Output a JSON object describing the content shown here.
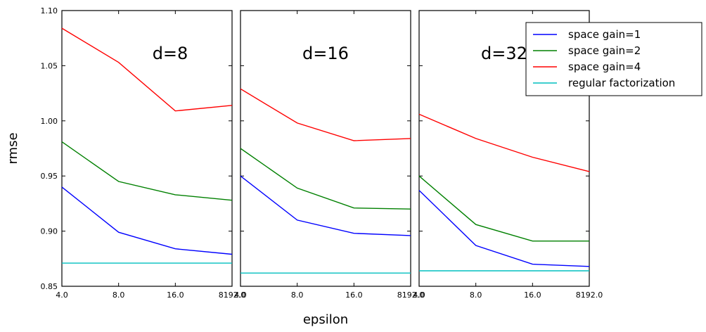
{
  "chart_data": {
    "type": "line",
    "ylabel": "rmse",
    "xlabel": "epsilon",
    "ylim": [
      0.85,
      1.1
    ],
    "yticks": [
      "0.85",
      "0.90",
      "0.95",
      "1.00",
      "1.05",
      "1.10"
    ],
    "x_categories": [
      "4.0",
      "8.0",
      "16.0",
      "8192.0"
    ],
    "legend": {
      "placement": "top-right"
    },
    "series_styles": [
      {
        "name": "space gain=1",
        "color": "#0000ff"
      },
      {
        "name": "space gain=2",
        "color": "#008000"
      },
      {
        "name": "space gain=4",
        "color": "#ff0000"
      },
      {
        "name": "regular factorization",
        "color": "#00bfbf"
      }
    ],
    "panels": [
      {
        "title": "d=8",
        "series": [
          {
            "name": "space gain=1",
            "values": [
              0.94,
              0.899,
              0.884,
              0.879
            ]
          },
          {
            "name": "space gain=2",
            "values": [
              0.981,
              0.945,
              0.933,
              0.928
            ]
          },
          {
            "name": "space gain=4",
            "values": [
              1.084,
              1.053,
              1.009,
              1.014
            ]
          },
          {
            "name": "regular factorization",
            "values": [
              0.871,
              0.871,
              0.871,
              0.871
            ]
          }
        ]
      },
      {
        "title": "d=16",
        "series": [
          {
            "name": "space gain=1",
            "values": [
              0.95,
              0.91,
              0.898,
              0.896
            ]
          },
          {
            "name": "space gain=2",
            "values": [
              0.975,
              0.939,
              0.921,
              0.92
            ]
          },
          {
            "name": "space gain=4",
            "values": [
              1.029,
              0.998,
              0.982,
              0.984
            ]
          },
          {
            "name": "regular factorization",
            "values": [
              0.862,
              0.862,
              0.862,
              0.862
            ]
          }
        ]
      },
      {
        "title": "d=32",
        "series": [
          {
            "name": "space gain=1",
            "values": [
              0.937,
              0.887,
              0.87,
              0.868
            ]
          },
          {
            "name": "space gain=2",
            "values": [
              0.95,
              0.906,
              0.891,
              0.891
            ]
          },
          {
            "name": "space gain=4",
            "values": [
              1.006,
              0.984,
              0.967,
              0.954
            ]
          },
          {
            "name": "regular factorization",
            "values": [
              0.864,
              0.864,
              0.864,
              0.864
            ]
          }
        ]
      }
    ]
  }
}
